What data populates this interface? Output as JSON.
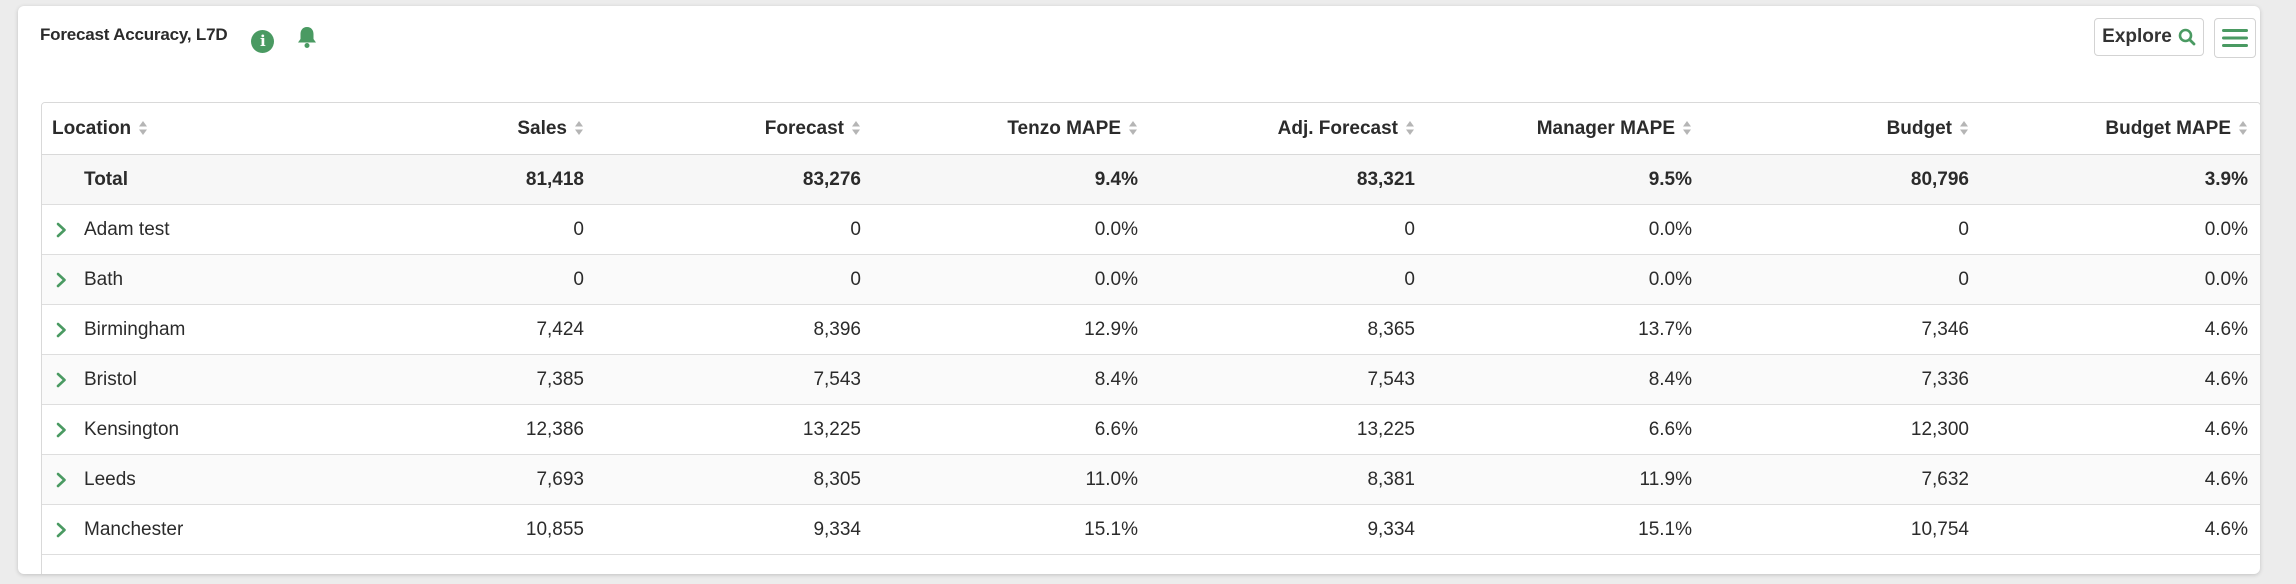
{
  "header": {
    "title": "Forecast Accuracy, L7D",
    "explore_label": "Explore"
  },
  "table": {
    "columns": [
      "Location",
      "Sales",
      "Forecast",
      "Tenzo MAPE",
      "Adj. Forecast",
      "Manager MAPE",
      "Budget",
      "Budget MAPE"
    ],
    "total": {
      "label": "Total",
      "values": [
        "81,418",
        "83,276",
        "9.4%",
        "83,321",
        "9.5%",
        "80,796",
        "3.9%"
      ]
    },
    "rows": [
      {
        "location": "Adam test",
        "values": [
          "0",
          "0",
          "0.0%",
          "0",
          "0.0%",
          "0",
          "0.0%"
        ]
      },
      {
        "location": "Bath",
        "values": [
          "0",
          "0",
          "0.0%",
          "0",
          "0.0%",
          "0",
          "0.0%"
        ]
      },
      {
        "location": "Birmingham",
        "values": [
          "7,424",
          "8,396",
          "12.9%",
          "8,365",
          "13.7%",
          "7,346",
          "4.6%"
        ]
      },
      {
        "location": "Bristol",
        "values": [
          "7,385",
          "7,543",
          "8.4%",
          "7,543",
          "8.4%",
          "7,336",
          "4.6%"
        ]
      },
      {
        "location": "Kensington",
        "values": [
          "12,386",
          "13,225",
          "6.6%",
          "13,225",
          "6.6%",
          "12,300",
          "4.6%"
        ]
      },
      {
        "location": "Leeds",
        "values": [
          "7,693",
          "8,305",
          "11.0%",
          "8,381",
          "11.9%",
          "7,632",
          "4.6%"
        ]
      },
      {
        "location": "Manchester",
        "values": [
          "10,855",
          "9,334",
          "15.1%",
          "9,334",
          "15.1%",
          "10,754",
          "4.6%"
        ]
      }
    ]
  },
  "colors": {
    "accent": "#4a9a62"
  }
}
